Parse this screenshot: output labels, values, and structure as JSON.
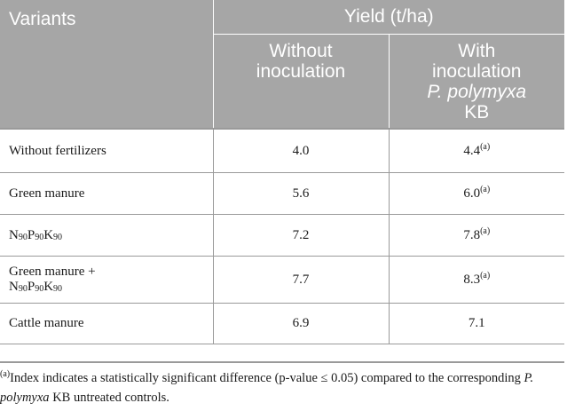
{
  "header": {
    "variants_label": "Variants",
    "yield_label": "Yield (t/ha)",
    "col_without_line1": "Without",
    "col_without_line2": "inoculation",
    "col_with_line1": "With",
    "col_with_line2": "inoculation",
    "col_with_species": "P. polymyxa",
    "col_with_strain": "KB"
  },
  "rows": [
    {
      "variant": "Without fertilizers",
      "without": "4.0",
      "with": "4.4",
      "with_mark": "(a)"
    },
    {
      "variant": "Green manure",
      "without": "5.6",
      "with": "6.0",
      "with_mark": "(a)"
    },
    {
      "variant_n": "N",
      "variant_n_sub": "90",
      "variant_p": "P",
      "variant_p_sub": "90",
      "variant_k": "K",
      "variant_k_sub": "90",
      "without": "7.2",
      "with": "7.8",
      "with_mark": "(a)"
    },
    {
      "variant_line1": "Green manure +",
      "variant_n": "N",
      "variant_n_sub": "90",
      "variant_p": "P",
      "variant_p_sub": "90",
      "variant_k": "K",
      "variant_k_sub": "90",
      "without": "7.7",
      "with": "8.3",
      "with_mark": "(a)"
    },
    {
      "variant": "Cattle manure",
      "without": "6.9",
      "with": "7.1"
    }
  ],
  "footnote": {
    "mark": "(a)",
    "text_part1": "Index indicates a statistically significant difference (p-value ≤ 0.05) compared to the corresponding ",
    "species": "P. polymyxa",
    "text_part2": " KB untreated controls."
  }
}
